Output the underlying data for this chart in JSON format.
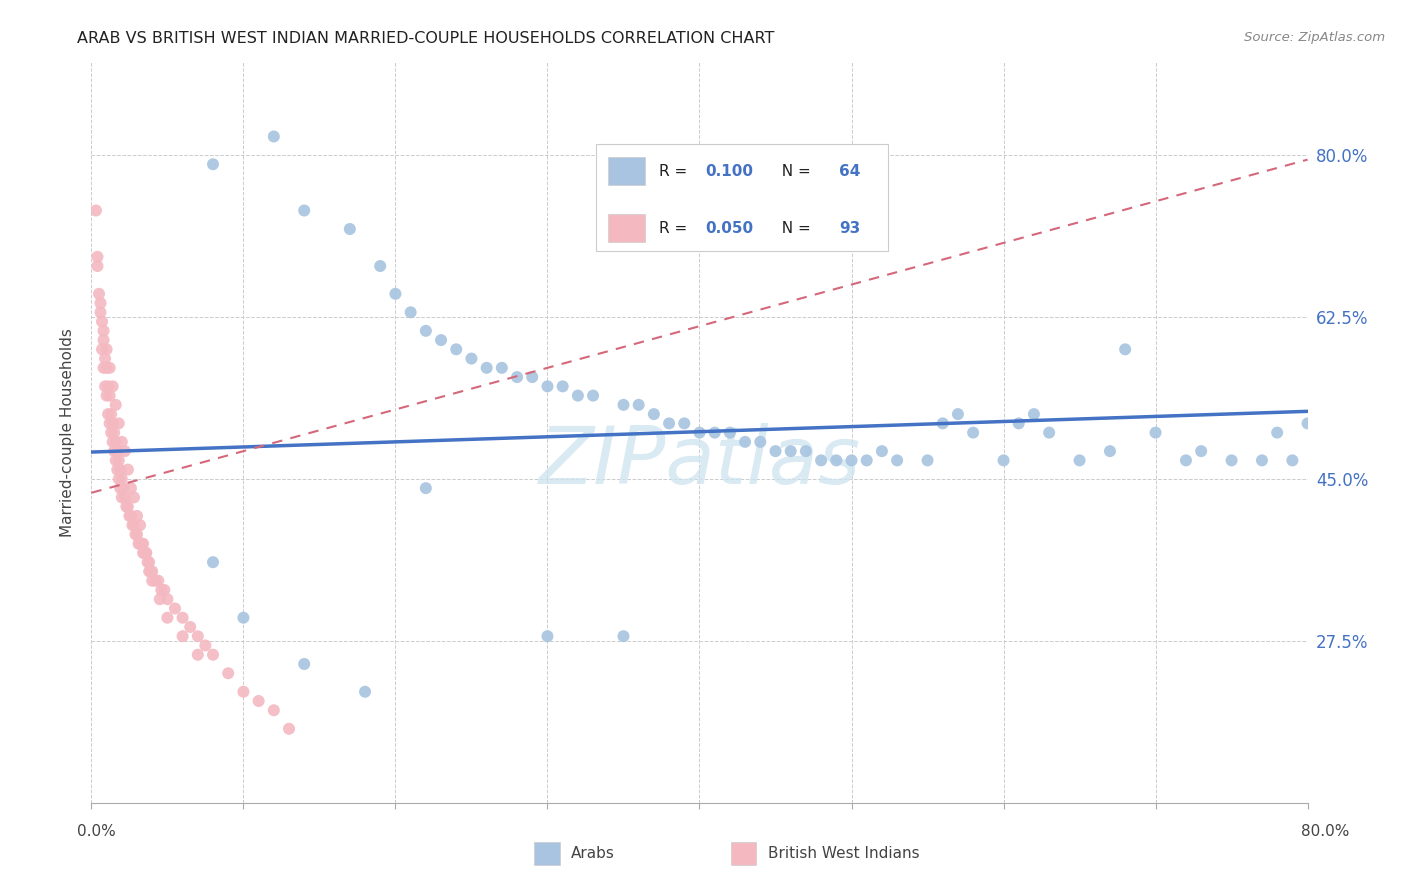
{
  "title": "ARAB VS BRITISH WEST INDIAN MARRIED-COUPLE HOUSEHOLDS CORRELATION CHART",
  "source": "Source: ZipAtlas.com",
  "ylabel": "Married-couple Households",
  "ytick_labels": [
    "80.0%",
    "62.5%",
    "45.0%",
    "27.5%"
  ],
  "ytick_values": [
    0.8,
    0.625,
    0.45,
    0.275
  ],
  "xlim": [
    0.0,
    0.8
  ],
  "ylim": [
    0.1,
    0.9
  ],
  "legend_arab_R": "0.100",
  "legend_arab_N": "64",
  "legend_bwi_R": "0.050",
  "legend_bwi_N": "93",
  "arab_color": "#a8c4e0",
  "bwi_color": "#f4b8c1",
  "arab_line_color": "#4472c4",
  "bwi_line_color": "#d4687a",
  "watermark_text": "ZIPatlas",
  "arab_line_start_y": 0.479,
  "arab_line_end_y": 0.523,
  "bwi_line_start_y": 0.435,
  "bwi_line_end_y": 0.795,
  "arab_points_x": [
    0.08,
    0.12,
    0.14,
    0.17,
    0.19,
    0.2,
    0.21,
    0.22,
    0.23,
    0.24,
    0.25,
    0.26,
    0.27,
    0.28,
    0.29,
    0.3,
    0.31,
    0.32,
    0.33,
    0.35,
    0.36,
    0.37,
    0.38,
    0.39,
    0.4,
    0.41,
    0.42,
    0.43,
    0.44,
    0.45,
    0.46,
    0.47,
    0.48,
    0.49,
    0.5,
    0.51,
    0.52,
    0.53,
    0.55,
    0.56,
    0.57,
    0.58,
    0.6,
    0.61,
    0.62,
    0.63,
    0.65,
    0.67,
    0.68,
    0.7,
    0.72,
    0.73,
    0.75,
    0.77,
    0.78,
    0.79,
    0.8,
    0.08,
    0.1,
    0.14,
    0.18,
    0.22,
    0.3,
    0.35
  ],
  "arab_points_y": [
    0.79,
    0.82,
    0.74,
    0.72,
    0.68,
    0.65,
    0.63,
    0.61,
    0.6,
    0.59,
    0.58,
    0.57,
    0.57,
    0.56,
    0.56,
    0.55,
    0.55,
    0.54,
    0.54,
    0.53,
    0.53,
    0.52,
    0.51,
    0.51,
    0.5,
    0.5,
    0.5,
    0.49,
    0.49,
    0.48,
    0.48,
    0.48,
    0.47,
    0.47,
    0.47,
    0.47,
    0.48,
    0.47,
    0.47,
    0.51,
    0.52,
    0.5,
    0.47,
    0.51,
    0.52,
    0.5,
    0.47,
    0.48,
    0.59,
    0.5,
    0.47,
    0.48,
    0.47,
    0.47,
    0.5,
    0.47,
    0.51,
    0.36,
    0.3,
    0.25,
    0.22,
    0.44,
    0.28,
    0.28
  ],
  "bwi_points_x": [
    0.003,
    0.004,
    0.005,
    0.006,
    0.007,
    0.007,
    0.008,
    0.008,
    0.009,
    0.009,
    0.01,
    0.01,
    0.011,
    0.011,
    0.012,
    0.012,
    0.013,
    0.013,
    0.014,
    0.014,
    0.015,
    0.015,
    0.016,
    0.016,
    0.017,
    0.017,
    0.018,
    0.018,
    0.019,
    0.019,
    0.02,
    0.02,
    0.021,
    0.022,
    0.023,
    0.024,
    0.025,
    0.026,
    0.027,
    0.028,
    0.029,
    0.03,
    0.031,
    0.032,
    0.033,
    0.034,
    0.035,
    0.036,
    0.037,
    0.038,
    0.039,
    0.04,
    0.042,
    0.044,
    0.046,
    0.048,
    0.05,
    0.055,
    0.06,
    0.065,
    0.07,
    0.075,
    0.08,
    0.09,
    0.1,
    0.11,
    0.12,
    0.13,
    0.004,
    0.006,
    0.008,
    0.01,
    0.012,
    0.014,
    0.016,
    0.018,
    0.02,
    0.022,
    0.024,
    0.026,
    0.028,
    0.03,
    0.032,
    0.034,
    0.036,
    0.038,
    0.04,
    0.045,
    0.05,
    0.06,
    0.07
  ],
  "bwi_points_y": [
    0.74,
    0.69,
    0.65,
    0.63,
    0.62,
    0.59,
    0.6,
    0.57,
    0.58,
    0.55,
    0.57,
    0.54,
    0.55,
    0.52,
    0.54,
    0.51,
    0.52,
    0.5,
    0.51,
    0.49,
    0.5,
    0.48,
    0.49,
    0.47,
    0.48,
    0.46,
    0.47,
    0.45,
    0.46,
    0.44,
    0.45,
    0.43,
    0.44,
    0.43,
    0.42,
    0.42,
    0.41,
    0.41,
    0.4,
    0.4,
    0.39,
    0.39,
    0.38,
    0.38,
    0.38,
    0.37,
    0.37,
    0.37,
    0.36,
    0.36,
    0.35,
    0.35,
    0.34,
    0.34,
    0.33,
    0.33,
    0.32,
    0.31,
    0.3,
    0.29,
    0.28,
    0.27,
    0.26,
    0.24,
    0.22,
    0.21,
    0.2,
    0.18,
    0.68,
    0.64,
    0.61,
    0.59,
    0.57,
    0.55,
    0.53,
    0.51,
    0.49,
    0.48,
    0.46,
    0.44,
    0.43,
    0.41,
    0.4,
    0.38,
    0.37,
    0.35,
    0.34,
    0.32,
    0.3,
    0.28,
    0.26
  ]
}
